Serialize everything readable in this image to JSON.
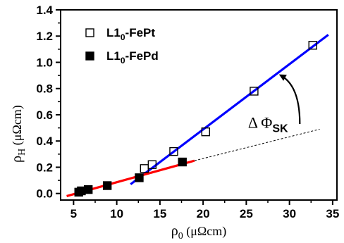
{
  "chart_data": {
    "type": "scatter",
    "title": "",
    "xlabel": {
      "main": "ρ",
      "sub": "0",
      "unit": " (μΩcm)"
    },
    "ylabel": {
      "main": "ρ",
      "sub": "H",
      "unit": " (μΩcm)"
    },
    "xlim": [
      3.5,
      35.5
    ],
    "ylim": [
      -0.05,
      1.4
    ],
    "x_ticks": [
      5,
      10,
      15,
      20,
      25,
      30,
      35
    ],
    "y_ticks": [
      0.0,
      0.2,
      0.4,
      0.6,
      0.8,
      1.0,
      1.2,
      1.4
    ],
    "x_tick_labels": [
      "5",
      "10",
      "15",
      "20",
      "25",
      "30",
      "35"
    ],
    "y_tick_labels": [
      "0.0",
      "0.2",
      "0.4",
      "0.6",
      "0.8",
      "1.0",
      "1.2",
      "1.4"
    ],
    "legend_position": "top-left",
    "series": [
      {
        "name": {
          "pre": "L1",
          "sub": "0",
          "post": "-FePt"
        },
        "marker": "open-square",
        "color": "#000000",
        "points": [
          [
            13.2,
            0.19
          ],
          [
            14.1,
            0.22
          ],
          [
            16.6,
            0.32
          ],
          [
            20.3,
            0.47
          ],
          [
            25.9,
            0.78
          ],
          [
            32.7,
            1.13
          ]
        ]
      },
      {
        "name": {
          "pre": "L1",
          "sub": "0",
          "post": "-FePd"
        },
        "marker": "filled-square",
        "color": "#000000",
        "points": [
          [
            5.6,
            0.01
          ],
          [
            5.9,
            0.02
          ],
          [
            6.7,
            0.03
          ],
          [
            8.9,
            0.06
          ],
          [
            12.6,
            0.12
          ],
          [
            17.6,
            0.24
          ]
        ]
      }
    ],
    "fit_lines": [
      {
        "color": "#0000ff",
        "style": "solid",
        "from": [
          11.6,
          0.07
        ],
        "to": [
          34.5,
          1.21
        ]
      },
      {
        "color": "#ff0000",
        "style": "solid",
        "from": [
          4.2,
          -0.02
        ],
        "to": [
          19.0,
          0.25
        ]
      },
      {
        "color": "#000000",
        "style": "dashed",
        "from": [
          19.0,
          0.25
        ],
        "to": [
          33.5,
          0.49
        ]
      }
    ],
    "annotation": {
      "text_main": "Δ Φ",
      "text_sub": "SK",
      "x": 25.2,
      "y": 0.5
    },
    "arrow": {
      "from": [
        31.2,
        0.53
      ],
      "control": [
        31.2,
        0.82
      ],
      "to": [
        29.0,
        0.9
      ]
    }
  }
}
